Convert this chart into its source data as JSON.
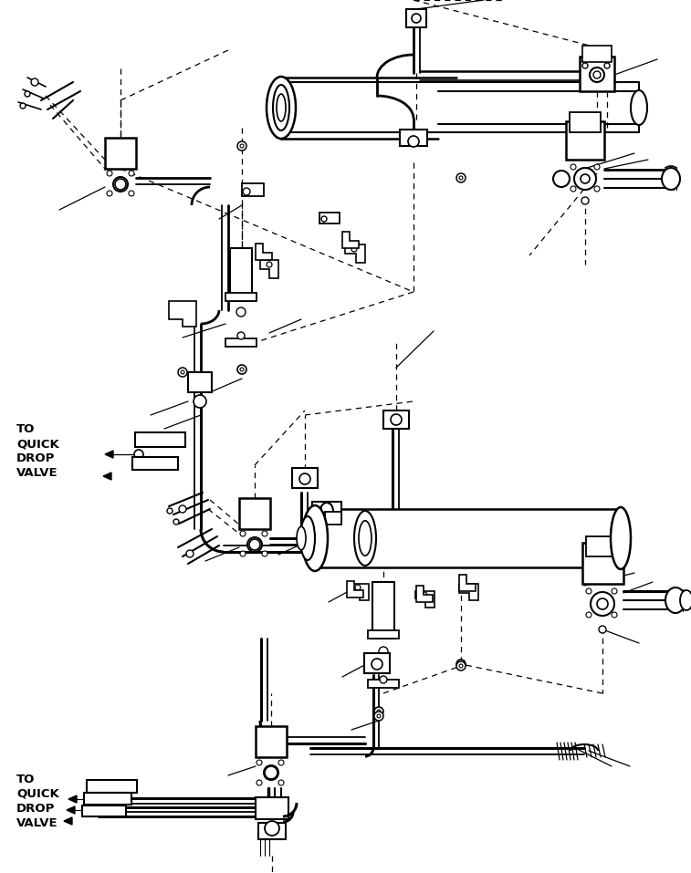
{
  "bg_color": "#ffffff",
  "lc": "#000000",
  "figsize": [
    7.57,
    9.57
  ],
  "dpi": 100,
  "label1": "TO\nQUICK\nDROP\nVALVE",
  "label2": "TO\nQUICK\nDROP\nVALVE"
}
